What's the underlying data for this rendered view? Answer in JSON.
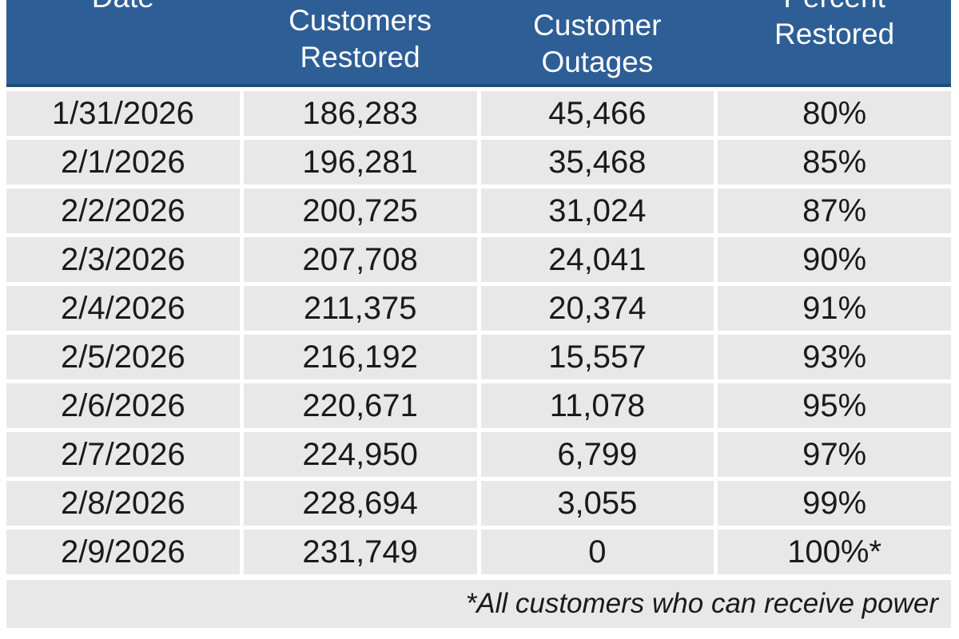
{
  "table": {
    "columns": [
      {
        "label": "Date",
        "line1": "Date",
        "line2": ""
      },
      {
        "label": "Customers Restored",
        "line1": "Customers",
        "line2": "Restored"
      },
      {
        "label": "Customer Outages",
        "line1": "Customer",
        "line2": "Outages"
      },
      {
        "label": "Percent Restored",
        "line1": "Percent",
        "line2": "Restored"
      }
    ],
    "rows": [
      [
        "1/31/2026",
        "186,283",
        "45,466",
        "80%"
      ],
      [
        "2/1/2026",
        "196,281",
        "35,468",
        "85%"
      ],
      [
        "2/2/2026",
        "200,725",
        "31,024",
        "87%"
      ],
      [
        "2/3/2026",
        "207,708",
        "24,041",
        "90%"
      ],
      [
        "2/4/2026",
        "211,375",
        "20,374",
        "91%"
      ],
      [
        "2/5/2026",
        "216,192",
        "15,557",
        "93%"
      ],
      [
        "2/6/2026",
        "220,671",
        "11,078",
        "95%"
      ],
      [
        "2/7/2026",
        "224,950",
        "6,799",
        "97%"
      ],
      [
        "2/8/2026",
        "228,694",
        "3,055",
        "99%"
      ],
      [
        "2/9/2026",
        "231,749",
        "0",
        "100%*"
      ]
    ],
    "footnote": "*All customers who can receive power"
  },
  "colors": {
    "header_bg": "#2E5E96",
    "header_border": "#1F4E79",
    "row_bg": "#E8E8E8",
    "header_text": "#FFFFFF",
    "cell_text": "#1A1A1A",
    "page_bg": "#FFFFFF"
  },
  "chart_data": {
    "type": "table",
    "columns": [
      "Date",
      "Customers Restored",
      "Customer Outages",
      "Percent Restored"
    ],
    "rows": [
      {
        "date": "1/31/2026",
        "customers_restored": 186283,
        "customer_outages": 45466,
        "percent_restored": 80
      },
      {
        "date": "2/1/2026",
        "customers_restored": 196281,
        "customer_outages": 35468,
        "percent_restored": 85
      },
      {
        "date": "2/2/2026",
        "customers_restored": 200725,
        "customer_outages": 31024,
        "percent_restored": 87
      },
      {
        "date": "2/3/2026",
        "customers_restored": 207708,
        "customer_outages": 24041,
        "percent_restored": 90
      },
      {
        "date": "2/4/2026",
        "customers_restored": 211375,
        "customer_outages": 20374,
        "percent_restored": 91
      },
      {
        "date": "2/5/2026",
        "customers_restored": 216192,
        "customer_outages": 15557,
        "percent_restored": 93
      },
      {
        "date": "2/6/2026",
        "customers_restored": 220671,
        "customer_outages": 11078,
        "percent_restored": 95
      },
      {
        "date": "2/7/2026",
        "customers_restored": 224950,
        "customer_outages": 6799,
        "percent_restored": 97
      },
      {
        "date": "2/8/2026",
        "customers_restored": 228694,
        "customer_outages": 3055,
        "percent_restored": 99
      },
      {
        "date": "2/9/2026",
        "customers_restored": 231749,
        "customer_outages": 0,
        "percent_restored": 100
      }
    ],
    "footnote": "*All customers who can receive power"
  }
}
